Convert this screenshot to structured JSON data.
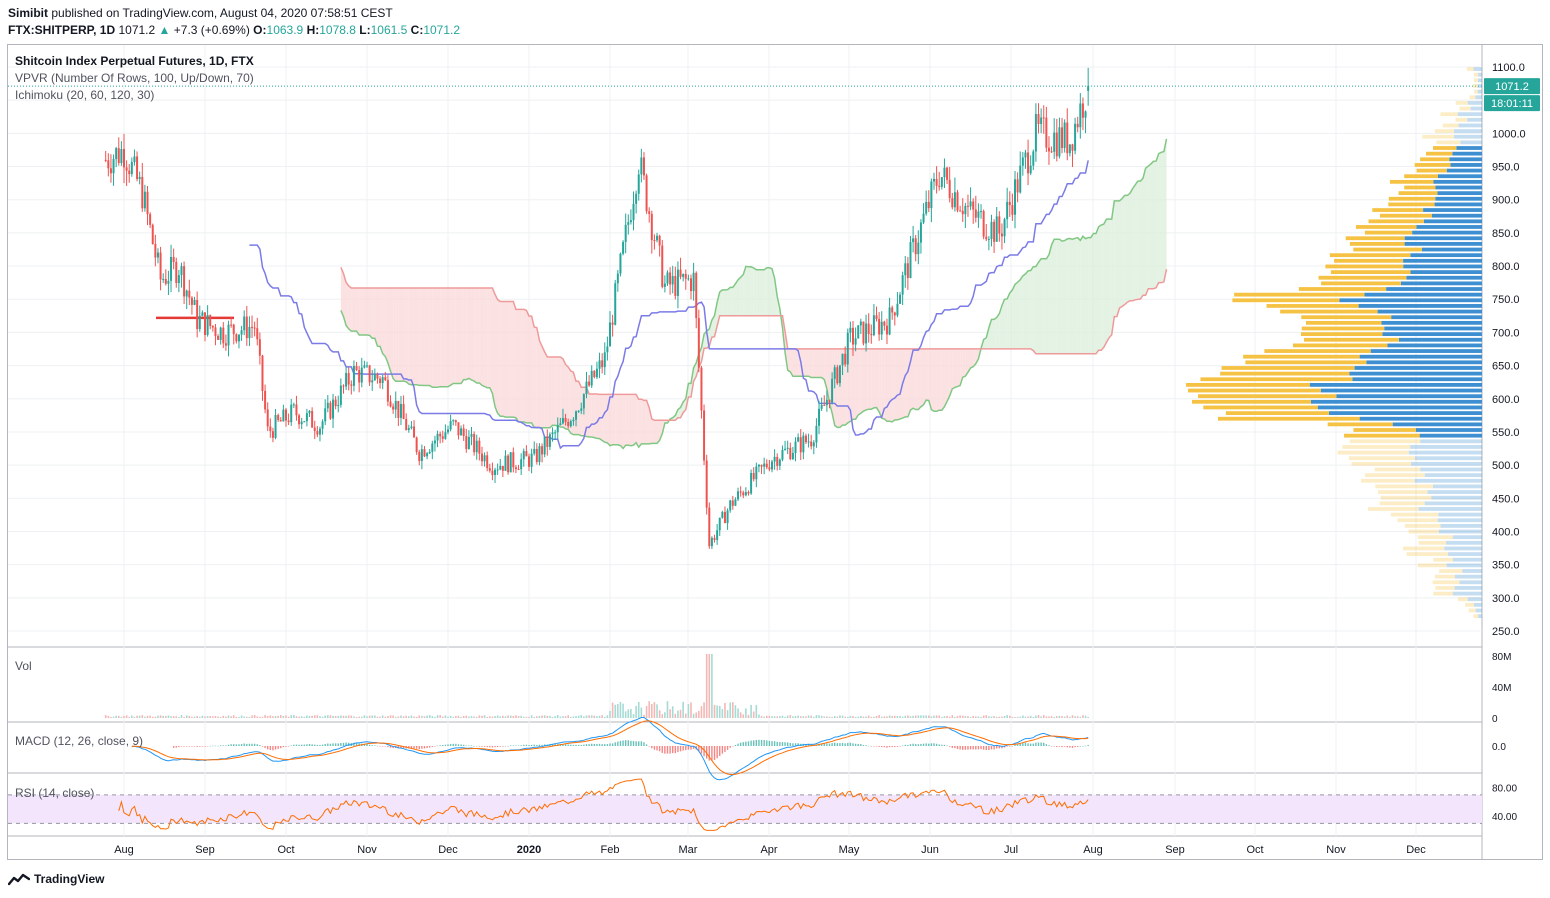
{
  "header": {
    "publisher": "Simibit",
    "published_text": "published on TradingView.com, August 04, 2020 07:58:51 CEST",
    "symbol": "FTX:SHITPERP, 1D",
    "last": "1071.2",
    "change": "+7.3 (+0.69%)",
    "o_label": "O:",
    "o": "1063.9",
    "h_label": "H:",
    "h": "1078.8",
    "l_label": "L:",
    "l": "1061.5",
    "c_label": "C:",
    "c": "1071.2"
  },
  "legend": {
    "title": "Shitcoin Index Perpetual Futures, 1D, FTX",
    "vpvr": "VPVR (Number Of Rows, 100, Up/Down, 70)",
    "ichimoku": "Ichimoku (20, 60, 120, 30)"
  },
  "panels": {
    "vol": "Vol",
    "macd": "MACD (12, 26, close, 9)",
    "rsi": "RSI (14, close)"
  },
  "price_badge": {
    "value": "1071.2",
    "timer": "18:01:11"
  },
  "colors": {
    "up": "#26a69a",
    "down": "#ef5350",
    "kijun": "#7b7be8",
    "span_a": "#81c784",
    "span_b": "#ef9a9a",
    "cloud_green": "#dcefdc",
    "cloud_red": "#fadada",
    "vp_up": "#f5c244",
    "vp_down": "#3d8fd1",
    "macd_line": "#2196f3",
    "signal_line": "#ff6d00",
    "rsi_line": "#ff6d00",
    "rsi_band": "#f3e5fb"
  },
  "footer": {
    "brand": "TradingView"
  },
  "chart_data": {
    "type": "candlestick",
    "price_axis": {
      "min": 250,
      "max": 1100,
      "ticks": [
        "1100.0",
        "1050.0",
        "1000.0",
        "950.0",
        "900.0",
        "850.0",
        "800.0",
        "750.0",
        "700.0",
        "650.0",
        "600.0",
        "550.0",
        "500.0",
        "450.0",
        "400.0",
        "350.0",
        "300.0",
        "250.0"
      ]
    },
    "time_axis": {
      "labels": [
        "Aug",
        "Sep",
        "Oct",
        "Nov",
        "Dec",
        "2020",
        "Feb",
        "Mar",
        "Apr",
        "May",
        "Jun",
        "Jul",
        "Aug",
        "Sep",
        "Oct",
        "Nov",
        "Dec"
      ]
    },
    "price_path": [
      {
        "t": "2019-07-25",
        "close": 960
      },
      {
        "t": "2019-08-01",
        "close": 975
      },
      {
        "t": "2019-08-08",
        "close": 910
      },
      {
        "t": "2019-08-15",
        "close": 780
      },
      {
        "t": "2019-08-22",
        "close": 800
      },
      {
        "t": "2019-08-29",
        "close": 720
      },
      {
        "t": "2019-09-08",
        "close": 700
      },
      {
        "t": "2019-09-20",
        "close": 710
      },
      {
        "t": "2019-09-25",
        "close": 550
      },
      {
        "t": "2019-10-05",
        "close": 580
      },
      {
        "t": "2019-10-15",
        "close": 560
      },
      {
        "t": "2019-10-28",
        "close": 640
      },
      {
        "t": "2019-11-08",
        "close": 630
      },
      {
        "t": "2019-11-22",
        "close": 520
      },
      {
        "t": "2019-12-05",
        "close": 560
      },
      {
        "t": "2019-12-20",
        "close": 500
      },
      {
        "t": "2020-01-05",
        "close": 510
      },
      {
        "t": "2020-01-20",
        "close": 580
      },
      {
        "t": "2020-02-01",
        "close": 660
      },
      {
        "t": "2020-02-14",
        "close": 960
      },
      {
        "t": "2020-02-24",
        "close": 770
      },
      {
        "t": "2020-03-06",
        "close": 780
      },
      {
        "t": "2020-03-12",
        "close": 380
      },
      {
        "t": "2020-03-20",
        "close": 440
      },
      {
        "t": "2020-04-05",
        "close": 510
      },
      {
        "t": "2020-04-20",
        "close": 540
      },
      {
        "t": "2020-05-05",
        "close": 690
      },
      {
        "t": "2020-05-20",
        "close": 720
      },
      {
        "t": "2020-06-08",
        "close": 940
      },
      {
        "t": "2020-06-20",
        "close": 880
      },
      {
        "t": "2020-07-01",
        "close": 850
      },
      {
        "t": "2020-07-15",
        "close": 1000
      },
      {
        "t": "2020-07-28",
        "close": 990
      },
      {
        "t": "2020-08-04",
        "close": 1071.2
      }
    ],
    "horizontal_line": {
      "price": 722,
      "color": "#e53935"
    },
    "last_price": 1071.2,
    "vol_axis": [
      "80M",
      "40M",
      "0"
    ],
    "macd_axis": [
      "0.0"
    ],
    "rsi_axis": [
      "80.00",
      "40.00"
    ],
    "rsi_band": [
      30,
      70
    ]
  }
}
